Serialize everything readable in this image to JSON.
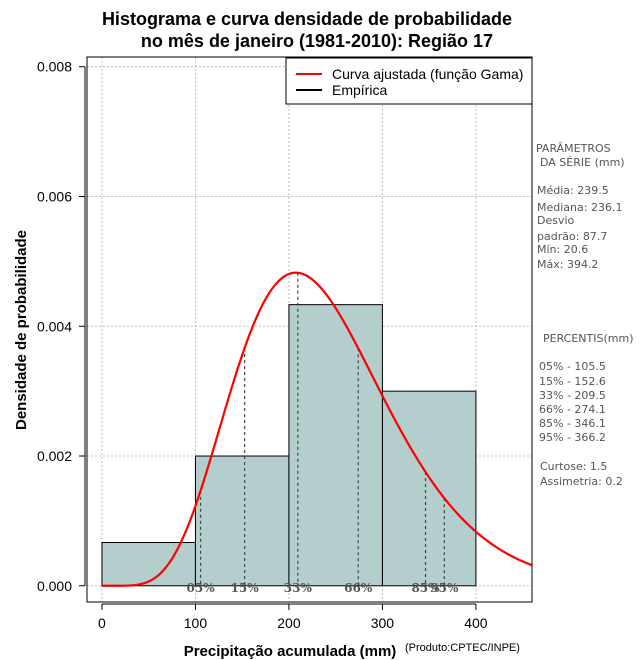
{
  "chart_data": {
    "type": "histogram",
    "title_line1": "Histograma e curva densidade de probabilidade",
    "title_line2": "no mês de janeiro (1981-2010): Região 17",
    "xlabel": "Precipitação acumulada (mm)",
    "ylabel": "Densidade de probabilidade",
    "credit": "(Produto:CPTEC/INPE)",
    "xlim": [
      -16,
      460
    ],
    "ylim": [
      -0.00025,
      0.00815
    ],
    "x_ticks": [
      0,
      100,
      200,
      300,
      400
    ],
    "y_ticks": [
      0.0,
      0.002,
      0.004,
      0.006,
      0.008
    ],
    "y_tick_labels": [
      "0.000",
      "0.002",
      "0.004",
      "0.006",
      "0.008"
    ],
    "bins": [
      {
        "from": 0,
        "to": 100,
        "density": 0.000667
      },
      {
        "from": 100,
        "to": 200,
        "density": 0.002
      },
      {
        "from": 200,
        "to": 300,
        "density": 0.004333
      },
      {
        "from": 300,
        "to": 400,
        "density": 0.003
      }
    ],
    "gamma_fit": {
      "mean": 239.5,
      "sd": 87.7
    },
    "percentile_markers": [
      {
        "label": "05%",
        "value": 105.5
      },
      {
        "label": "15%",
        "value": 152.6
      },
      {
        "label": "33%",
        "value": 209.5
      },
      {
        "label": "66%",
        "value": 274.1
      },
      {
        "label": "85%",
        "value": 346.1
      },
      {
        "label": "95%",
        "value": 366.2
      }
    ],
    "legend": {
      "position": "top-right",
      "entries": [
        {
          "label": "Curva ajustada (função Gama)",
          "color": "#ff0000"
        },
        {
          "label": "Empírica",
          "color": "#000000"
        }
      ]
    },
    "colors": {
      "bar_fill": "#b4cdcd",
      "curve": "#ff0000",
      "grid": "#bebebe"
    }
  },
  "side_panel": {
    "params_title_1": "PARÂMETROS",
    "params_title_2": "DA SÉRIE (mm)",
    "params": [
      "Média:  239.5",
      "Mediana:  236.1",
      "Desvio",
      "padrão:  87.7",
      "Mín:  20.6",
      "Máx:  394.2"
    ],
    "percentis_title": "PERCENTIS(mm)",
    "percentis": [
      "05% -  105.5",
      "15% -  152.6",
      "33% -  209.5",
      "66% -  274.1",
      "85% -  346.1",
      "95% -  366.2"
    ],
    "stats": [
      "Curtose:  1.5",
      "Assimetria:  0.2"
    ]
  }
}
